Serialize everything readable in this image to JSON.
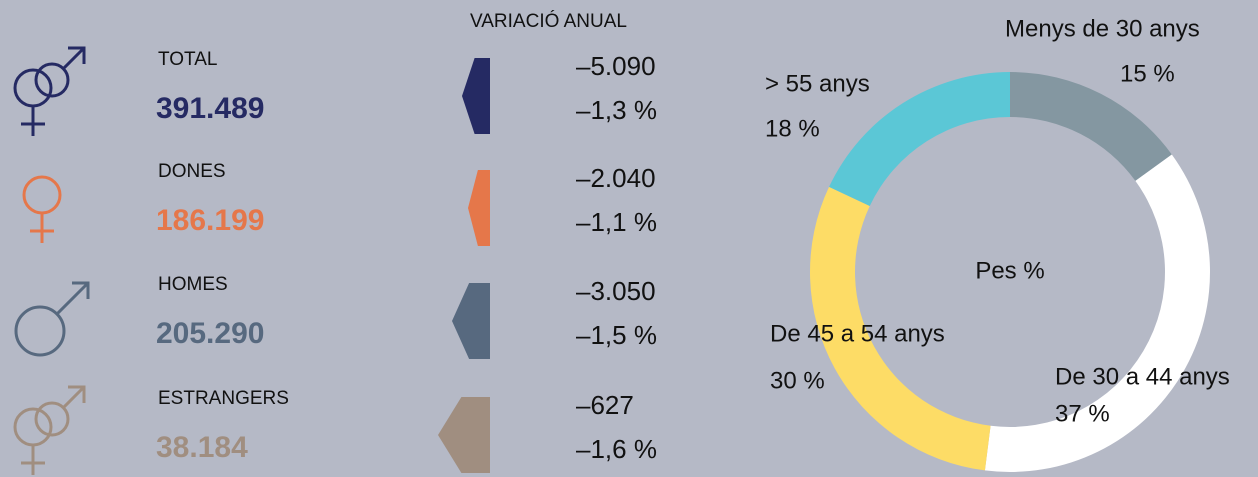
{
  "stats": {
    "title": "VARIACIÓ ANUAL",
    "rows": [
      {
        "label": "TOTAL",
        "value": "391.489",
        "change": "–5.090",
        "change_pct": "–1,3 %"
      },
      {
        "label": "DONES",
        "value": "186.199",
        "change": "–2.040",
        "change_pct": "–1,1 %"
      },
      {
        "label": "HOMES",
        "value": "205.290",
        "change": "–3.050",
        "change_pct": "–1,5 %"
      },
      {
        "label": "ESTRANGERS",
        "value": "38.184",
        "change": "–627",
        "change_pct": "–1,6 %"
      }
    ]
  },
  "chart_data": {
    "type": "donut",
    "center_label": "Pes %",
    "categories": [
      "Menys de 30 anys",
      "De 30 a 44 anys",
      "De 45 a 54 anys",
      "> 55 anys"
    ],
    "values": [
      15,
      37,
      30,
      18
    ],
    "value_labels": [
      "15 %",
      "37 %",
      "30 %",
      "18 %"
    ],
    "colors": [
      "#8497a1",
      "#ffffff",
      "#fddc66",
      "#5bc7d6"
    ]
  }
}
